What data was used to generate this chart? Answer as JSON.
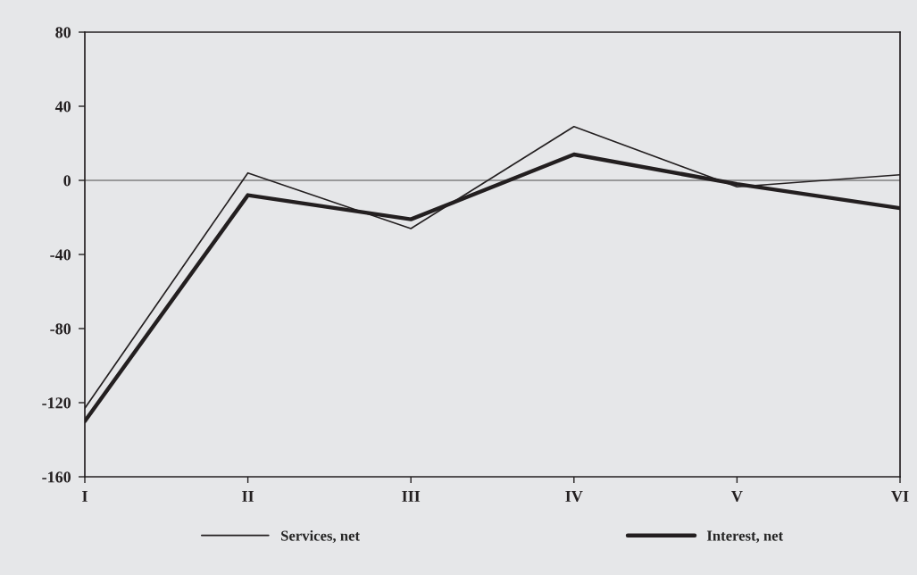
{
  "chart_data": {
    "type": "line",
    "categories": [
      "I",
      "II",
      "III",
      "IV",
      "V",
      "VI"
    ],
    "series": [
      {
        "name": "Services, net",
        "color": "#231f20",
        "values": [
          -123,
          4,
          -26,
          29,
          -3.5,
          3
        ]
      },
      {
        "name": "Interest, net",
        "color": "#231f20",
        "values": [
          -130,
          -8,
          -21,
          14,
          -2,
          -15
        ]
      }
    ],
    "ylim": [
      -160,
      80
    ],
    "yticks": [
      -160,
      -120,
      -80,
      -40,
      0,
      40,
      80
    ],
    "ref_lines": [
      {
        "axis": "y",
        "value": 0,
        "color": "#4d4d4d"
      }
    ],
    "grid": false,
    "legend": "bottom",
    "marker": "none",
    "line_style": "solid"
  }
}
